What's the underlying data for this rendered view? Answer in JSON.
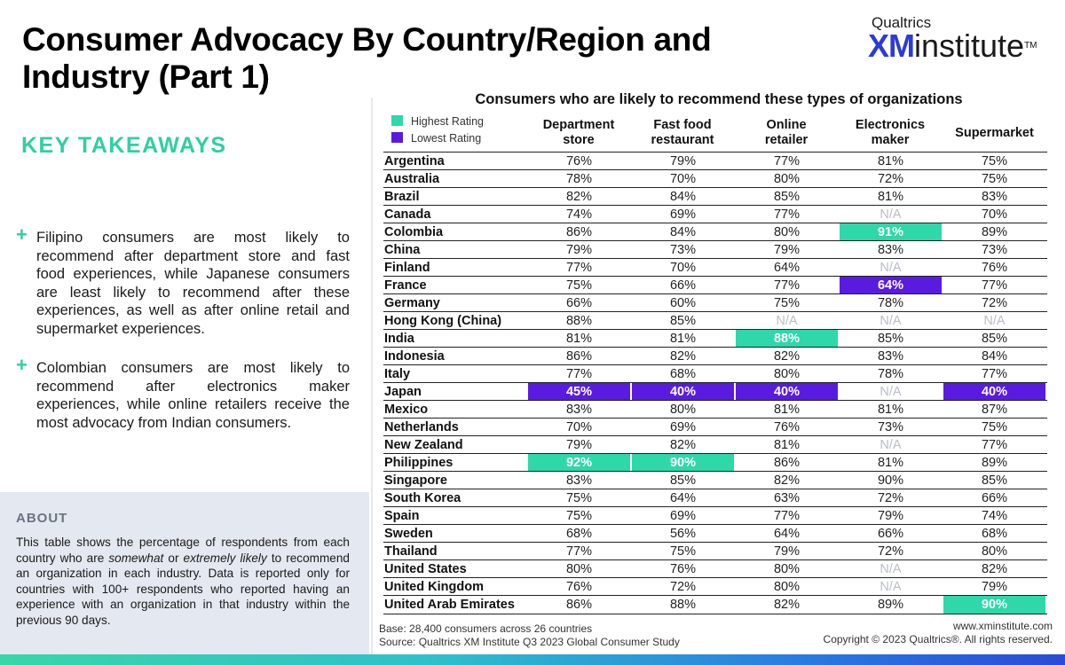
{
  "page": {
    "title": "Consumer Advocacy By Country/Region and Industry (Part 1)",
    "logo": {
      "brand": "Qualtrics",
      "xm": "XM",
      "institute": "institute",
      "tm": "TM"
    },
    "takeaways_heading": "KEY TAKEAWAYS",
    "takeaways": [
      "Filipino consumers are most likely to recommend after department store and fast food experiences, while Japanese consumers are least likely to recommend after these experiences, as well as after online retail and supermarket experiences.",
      "Colombian consumers are most likely to recommend after electronics maker experiences, while online retailers receive the most advocacy from Indian consumers."
    ],
    "about_heading": "ABOUT",
    "about": {
      "p1": "This table shows the percentage of respondents from each country who are ",
      "em1": "somewhat",
      "p2": " or ",
      "em2": "extremely likely",
      "p3": " to recommend an organization in each industry. Data is reported only for countries with 100+ respondents who reported having an experience with an organization in that industry within the previous 90 days."
    },
    "footer": {
      "base": "Base: 28,400 consumers across 26 countries",
      "source": "Source: Qualtrics XM Institute Q3 2023 Global Consumer Study",
      "url": "www.xminstitute.com",
      "copyright": "Copyright © 2023 Qualtrics®. All rights reserved."
    }
  },
  "colors": {
    "highest": "#2ed8a9",
    "lowest": "#5a1be0",
    "accent": "#2fcfa3",
    "brand": "#2c3bd6"
  },
  "chart_data": {
    "type": "table",
    "title": "Consumers who are likely to recommend these types of organizations",
    "legend": {
      "highest": "Highest Rating",
      "lowest": "Lowest Rating"
    },
    "columns": [
      "Department store",
      "Fast food restaurant",
      "Online retailer",
      "Electronics maker",
      "Supermarket"
    ],
    "rows": [
      {
        "country": "Argentina",
        "values": [
          "76%",
          "79%",
          "77%",
          "81%",
          "75%"
        ],
        "flags": [
          "",
          "",
          "",
          "",
          ""
        ]
      },
      {
        "country": "Australia",
        "values": [
          "78%",
          "70%",
          "80%",
          "72%",
          "75%"
        ],
        "flags": [
          "",
          "",
          "",
          "",
          ""
        ]
      },
      {
        "country": "Brazil",
        "values": [
          "82%",
          "84%",
          "85%",
          "81%",
          "83%"
        ],
        "flags": [
          "",
          "",
          "",
          "",
          ""
        ]
      },
      {
        "country": "Canada",
        "values": [
          "74%",
          "69%",
          "77%",
          "N/A",
          "70%"
        ],
        "flags": [
          "",
          "",
          "",
          "",
          ""
        ]
      },
      {
        "country": "Colombia",
        "values": [
          "86%",
          "84%",
          "80%",
          "91%",
          "89%"
        ],
        "flags": [
          "",
          "",
          "",
          "hi",
          ""
        ]
      },
      {
        "country": "China",
        "values": [
          "79%",
          "73%",
          "79%",
          "83%",
          "73%"
        ],
        "flags": [
          "",
          "",
          "",
          "",
          ""
        ]
      },
      {
        "country": "Finland",
        "values": [
          "77%",
          "70%",
          "64%",
          "N/A",
          "76%"
        ],
        "flags": [
          "",
          "",
          "",
          "",
          ""
        ]
      },
      {
        "country": "France",
        "values": [
          "75%",
          "66%",
          "77%",
          "64%",
          "77%"
        ],
        "flags": [
          "",
          "",
          "",
          "lo",
          ""
        ]
      },
      {
        "country": "Germany",
        "values": [
          "66%",
          "60%",
          "75%",
          "78%",
          "72%"
        ],
        "flags": [
          "",
          "",
          "",
          "",
          ""
        ]
      },
      {
        "country": "Hong Kong (China)",
        "values": [
          "88%",
          "85%",
          "N/A",
          "N/A",
          "N/A"
        ],
        "flags": [
          "",
          "",
          "",
          "",
          ""
        ]
      },
      {
        "country": "India",
        "values": [
          "81%",
          "81%",
          "88%",
          "85%",
          "85%"
        ],
        "flags": [
          "",
          "",
          "hi",
          "",
          ""
        ]
      },
      {
        "country": "Indonesia",
        "values": [
          "86%",
          "82%",
          "82%",
          "83%",
          "84%"
        ],
        "flags": [
          "",
          "",
          "",
          "",
          ""
        ]
      },
      {
        "country": "Italy",
        "values": [
          "77%",
          "68%",
          "80%",
          "78%",
          "77%"
        ],
        "flags": [
          "",
          "",
          "",
          "",
          ""
        ]
      },
      {
        "country": "Japan",
        "values": [
          "45%",
          "40%",
          "40%",
          "N/A",
          "40%"
        ],
        "flags": [
          "lo",
          "lo",
          "lo",
          "",
          "lo"
        ]
      },
      {
        "country": "Mexico",
        "values": [
          "83%",
          "80%",
          "81%",
          "81%",
          "87%"
        ],
        "flags": [
          "",
          "",
          "",
          "",
          ""
        ]
      },
      {
        "country": "Netherlands",
        "values": [
          "70%",
          "69%",
          "76%",
          "73%",
          "75%"
        ],
        "flags": [
          "",
          "",
          "",
          "",
          ""
        ]
      },
      {
        "country": "New Zealand",
        "values": [
          "79%",
          "82%",
          "81%",
          "N/A",
          "77%"
        ],
        "flags": [
          "",
          "",
          "",
          "",
          ""
        ]
      },
      {
        "country": "Philippines",
        "values": [
          "92%",
          "90%",
          "86%",
          "81%",
          "89%"
        ],
        "flags": [
          "hi",
          "hi",
          "",
          "",
          ""
        ]
      },
      {
        "country": "Singapore",
        "values": [
          "83%",
          "85%",
          "82%",
          "90%",
          "85%"
        ],
        "flags": [
          "",
          "",
          "",
          "",
          ""
        ]
      },
      {
        "country": "South Korea",
        "values": [
          "75%",
          "64%",
          "63%",
          "72%",
          "66%"
        ],
        "flags": [
          "",
          "",
          "",
          "",
          ""
        ]
      },
      {
        "country": "Spain",
        "values": [
          "75%",
          "69%",
          "77%",
          "79%",
          "74%"
        ],
        "flags": [
          "",
          "",
          "",
          "",
          ""
        ]
      },
      {
        "country": "Sweden",
        "values": [
          "68%",
          "56%",
          "64%",
          "66%",
          "68%"
        ],
        "flags": [
          "",
          "",
          "",
          "",
          ""
        ]
      },
      {
        "country": "Thailand",
        "values": [
          "77%",
          "75%",
          "79%",
          "72%",
          "80%"
        ],
        "flags": [
          "",
          "",
          "",
          "",
          ""
        ]
      },
      {
        "country": "United States",
        "values": [
          "80%",
          "76%",
          "80%",
          "N/A",
          "82%"
        ],
        "flags": [
          "",
          "",
          "",
          "",
          ""
        ]
      },
      {
        "country": "United Kingdom",
        "values": [
          "76%",
          "72%",
          "80%",
          "N/A",
          "79%"
        ],
        "flags": [
          "",
          "",
          "",
          "",
          ""
        ]
      },
      {
        "country": "United Arab Emirates",
        "values": [
          "86%",
          "88%",
          "82%",
          "89%",
          "90%"
        ],
        "flags": [
          "",
          "",
          "",
          "",
          "hi"
        ]
      }
    ]
  }
}
